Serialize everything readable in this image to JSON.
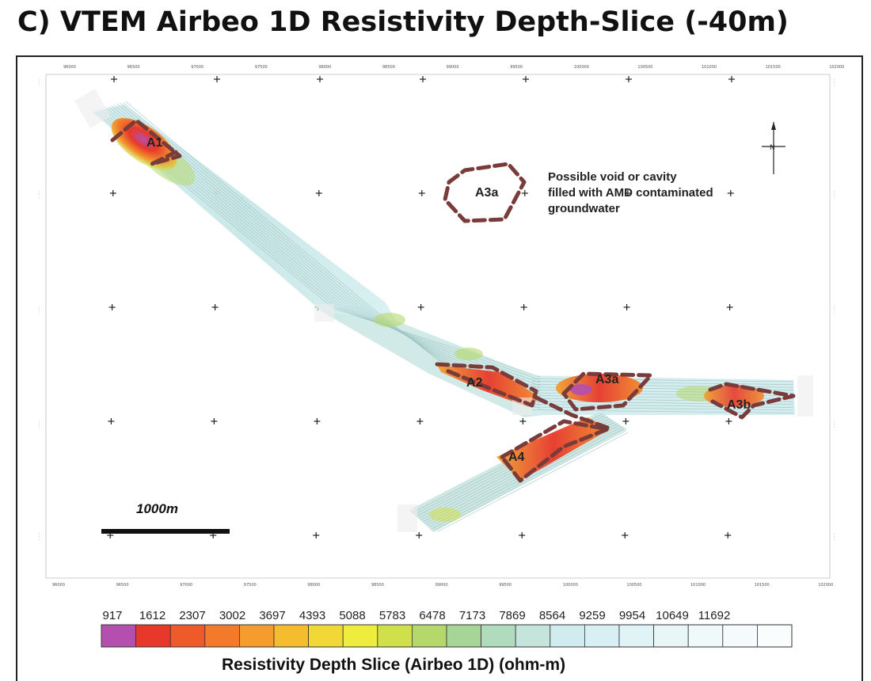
{
  "title": "C) VTEM Airbeo 1D Resistivity Depth-Slice (-40m)",
  "map": {
    "top_ticks": [
      "96000",
      "96500",
      "97000",
      "97500",
      "98000",
      "98500",
      "99000",
      "99500",
      "100000",
      "100500",
      "101000",
      "101500",
      "102000"
    ],
    "bottom_ticks": [
      "96000",
      "96500",
      "97000",
      "97500",
      "98000",
      "98500",
      "99000",
      "99500",
      "100000",
      "100500",
      "101000",
      "101500",
      "102000"
    ],
    "zones": [
      {
        "id": "A1",
        "label": "A1"
      },
      {
        "id": "A2",
        "label": "A2"
      },
      {
        "id": "A3a_main",
        "label": "A3a"
      },
      {
        "id": "A3b",
        "label": "A3b"
      },
      {
        "id": "A4",
        "label": "A4"
      },
      {
        "id": "A3a_void",
        "label": "A3a"
      }
    ],
    "annotation": [
      "Possible void or cavity",
      "filled with AMD contaminated",
      "groundwater"
    ],
    "scale_bar": {
      "label": "1000m",
      "length_m": 1000
    },
    "north_arrow": {
      "label": "N"
    }
  },
  "legend": {
    "title": "Resistivity Depth Slice (Airbeo 1D) (ohm-m)",
    "units": "ohm-m",
    "values": [
      "917",
      "1612",
      "2307",
      "3002",
      "3697",
      "4393",
      "5088",
      "5783",
      "6478",
      "7173",
      "7869",
      "8564",
      "9259",
      "9954",
      "10649",
      "11692"
    ],
    "colors": [
      "#b44fb0",
      "#e8382a",
      "#ee5a2a",
      "#f37a2a",
      "#f59c2e",
      "#f6bc2f",
      "#f2d836",
      "#eeec3c",
      "#cfe04a",
      "#b5d86a",
      "#a6d597",
      "#b0dbbd",
      "#c4e4dc",
      "#d0ecee",
      "#d8eff3",
      "#e0f3f6",
      "#e8f6f8",
      "#eff9fa",
      "#f5fbfc",
      "#f9fdfe"
    ]
  }
}
